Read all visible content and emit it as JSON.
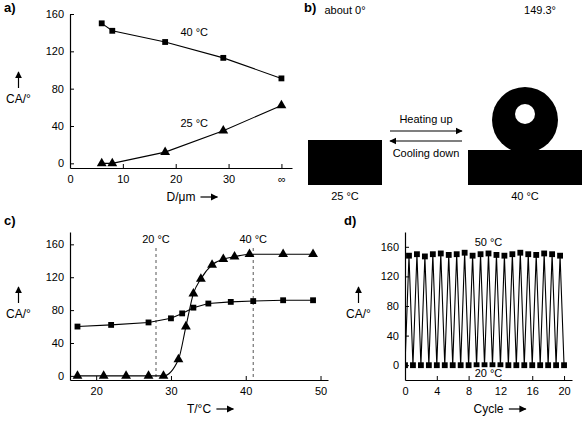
{
  "chart_data": [
    {
      "title": "a)",
      "type": "line",
      "x_label": "D/μm",
      "y_label": "CA/°",
      "xlim": [
        0,
        42
      ],
      "ylim": [
        -5,
        160
      ],
      "xticks": [
        0,
        10,
        20,
        30,
        {
          "value": 40,
          "label": "∞"
        }
      ],
      "yticks": [
        0,
        40,
        80,
        120,
        160
      ],
      "x": [
        6,
        8,
        18,
        29,
        40
      ],
      "series": [
        {
          "name": "40 °C",
          "color": "#000000",
          "marker": "square",
          "line_style": "solid",
          "values": [
            150,
            142,
            130,
            113,
            91
          ]
        },
        {
          "name": "25 °C",
          "color": "#000000",
          "marker": "triangle",
          "line_style": "solid",
          "values": [
            0,
            0,
            12,
            35,
            62
          ]
        }
      ]
    },
    {
      "title": "c)",
      "type": "line",
      "x_label": "T/°C",
      "y_label": "CA/°",
      "xlim": [
        16.5,
        51
      ],
      "ylim": [
        -5,
        175
      ],
      "xticks": [
        20,
        30,
        40,
        50
      ],
      "yticks": [
        0,
        40,
        80,
        120,
        160
      ],
      "series": [
        {
          "color": "#000000",
          "marker": "square",
          "line_style": "solid",
          "x": [
            17.5,
            22,
            27,
            30,
            31.5,
            33,
            35,
            38,
            41,
            45,
            49
          ],
          "values": [
            60,
            62,
            65,
            70,
            76,
            83,
            88,
            90,
            91,
            92,
            92
          ]
        },
        {
          "color": "#000000",
          "marker": "triangle",
          "line_style": "smooth",
          "x": [
            17.5,
            21,
            24,
            27,
            29,
            31,
            32,
            33,
            34,
            35.5,
            37,
            38.5,
            40.5,
            45,
            49
          ],
          "values": [
            0,
            0,
            0,
            0,
            0,
            20,
            60,
            100,
            118,
            135,
            142,
            145,
            148,
            148,
            148
          ]
        }
      ],
      "annotations": [
        {
          "x": 28,
          "text": "20 °C"
        },
        {
          "x": 41,
          "text": "40 °C"
        }
      ]
    },
    {
      "title": "d)",
      "type": "line",
      "x_label": "Cycle",
      "y_label": "CA/°",
      "xlim": [
        0,
        21
      ],
      "ylim": [
        -20,
        180
      ],
      "xticks": [
        0,
        4,
        8,
        12,
        16,
        20
      ],
      "yticks": [
        0,
        40,
        80,
        120,
        160
      ],
      "x": [
        0,
        0.5,
        1,
        1.5,
        2,
        2.5,
        3,
        3.5,
        4,
        4.5,
        5,
        5.5,
        6,
        6.5,
        7,
        7.5,
        8,
        8.5,
        9,
        9.5,
        10,
        10.5,
        11,
        11.5,
        12,
        12.5,
        13,
        13.5,
        14,
        14.5,
        15,
        15.5,
        16,
        16.5,
        17,
        17.5,
        18,
        18.5,
        19,
        19.5,
        20
      ],
      "series": [
        {
          "color": "#000000",
          "marker": "square",
          "line_style": "solid",
          "values": [
            0,
            148,
            0,
            150,
            0,
            147,
            0,
            150,
            0,
            151,
            0,
            149,
            0,
            150,
            0,
            152,
            0,
            148,
            0,
            150,
            0,
            151,
            0,
            149,
            0,
            148,
            0,
            150,
            0,
            152,
            0,
            150,
            0,
            149,
            0,
            151,
            0,
            150,
            0,
            148,
            0
          ]
        }
      ],
      "annotations": [
        {
          "y": 150,
          "text": "50 °C"
        },
        {
          "y": 0,
          "text": "20 °C"
        }
      ]
    }
  ],
  "photo": {
    "title": "b)",
    "left_angle": "about 0°",
    "right_angle": "149.3°",
    "heating": "Heating up",
    "cooling": "Cooling down",
    "left_temperature": "25 °C",
    "right_temperature": "40 °C"
  }
}
